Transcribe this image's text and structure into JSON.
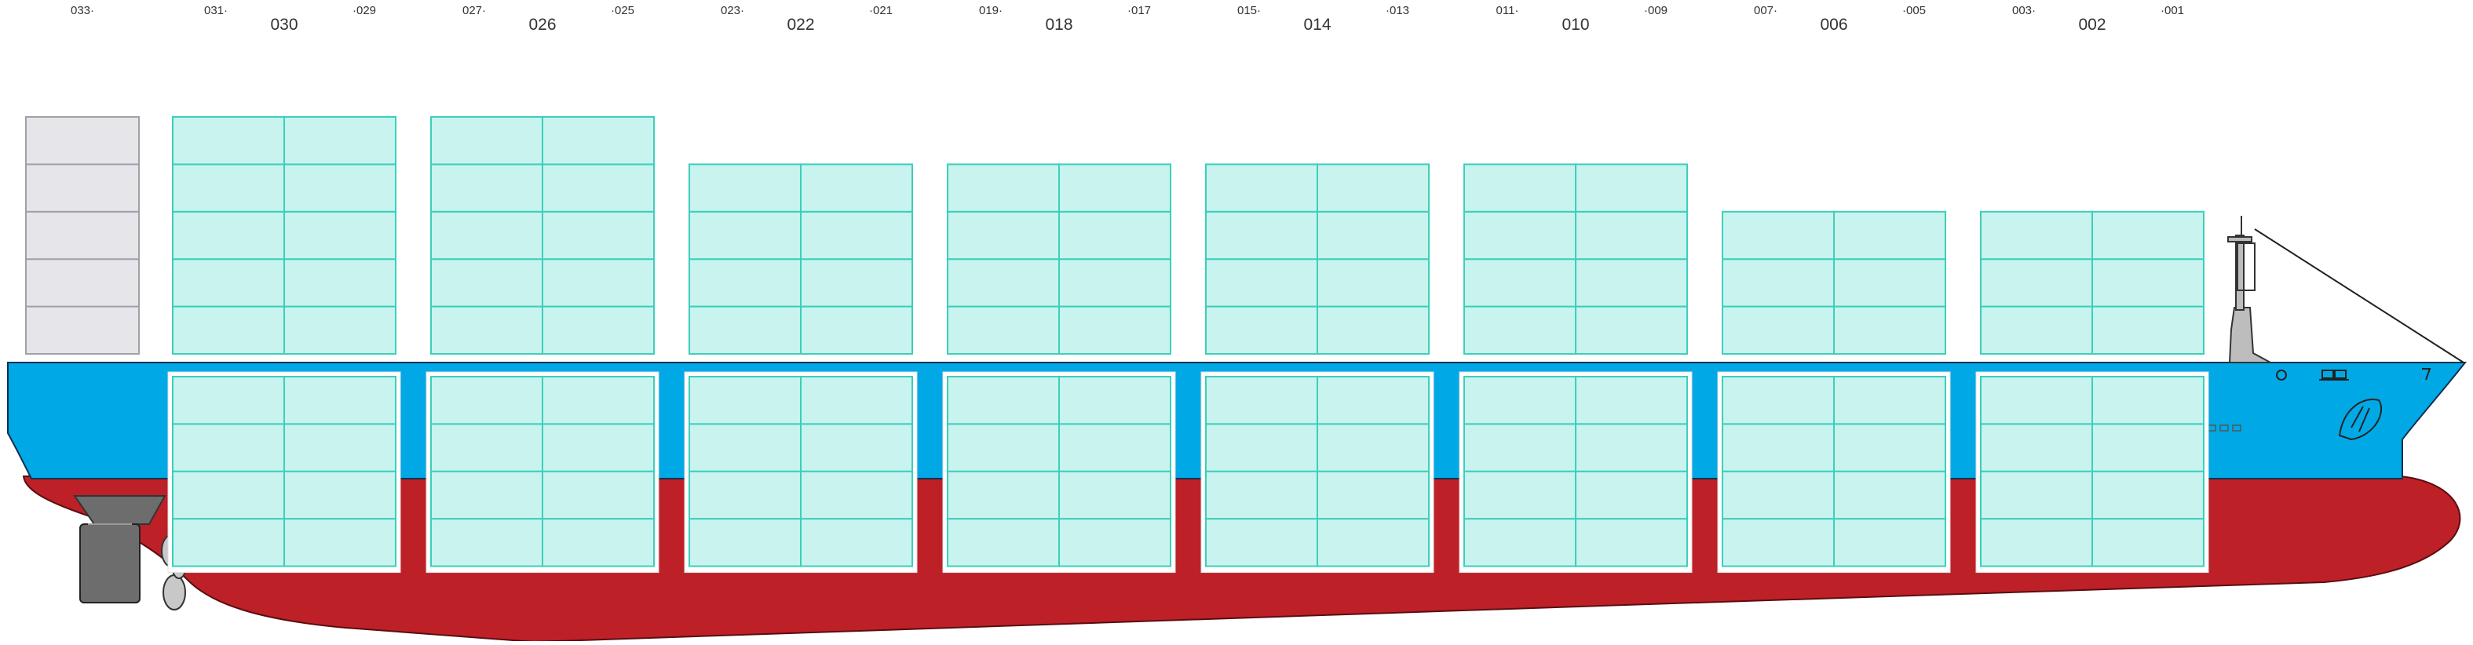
{
  "diagram": {
    "bays": [
      {
        "center": "",
        "left": "033",
        "right": "",
        "deck_tiers": 5,
        "hold_tiers": 0,
        "stack_cols": 1,
        "empty": true
      },
      {
        "center": "030",
        "left": "031",
        "right": "029",
        "deck_tiers": 5,
        "hold_tiers": 4,
        "stack_cols": 2,
        "empty": false
      },
      {
        "center": "026",
        "left": "027",
        "right": "025",
        "deck_tiers": 5,
        "hold_tiers": 4,
        "stack_cols": 2,
        "empty": false
      },
      {
        "center": "022",
        "left": "023",
        "right": "021",
        "deck_tiers": 4,
        "hold_tiers": 4,
        "stack_cols": 2,
        "empty": false
      },
      {
        "center": "018",
        "left": "019",
        "right": "017",
        "deck_tiers": 4,
        "hold_tiers": 4,
        "stack_cols": 2,
        "empty": false
      },
      {
        "center": "014",
        "left": "015",
        "right": "013",
        "deck_tiers": 4,
        "hold_tiers": 4,
        "stack_cols": 2,
        "empty": false
      },
      {
        "center": "010",
        "left": "011",
        "right": "009",
        "deck_tiers": 4,
        "hold_tiers": 4,
        "stack_cols": 2,
        "empty": false
      },
      {
        "center": "006",
        "left": "007",
        "right": "005",
        "deck_tiers": 3,
        "hold_tiers": 4,
        "stack_cols": 2,
        "empty": false
      },
      {
        "center": "002",
        "left": "003",
        "right": "001",
        "deck_tiers": 3,
        "hold_tiers": 4,
        "stack_cols": 2,
        "empty": false
      }
    ],
    "colors": {
      "hull_upper": "#00a9e6",
      "hull_lower": "#be2027",
      "container_fill": "#c8f3ef",
      "container_stroke": "#3ccfba",
      "empty_fill": "#e6e6ea",
      "empty_stroke": "#a0a0a8",
      "hold_frame": "#ffffff",
      "rudder": "#6d6d6d",
      "propeller": "#c8c8c8",
      "mast": "#bdbdbd"
    },
    "icons": [
      "rudder-icon",
      "propeller-icon",
      "mast-icon",
      "anchor-icon",
      "bulbous-bow-icon"
    ]
  }
}
